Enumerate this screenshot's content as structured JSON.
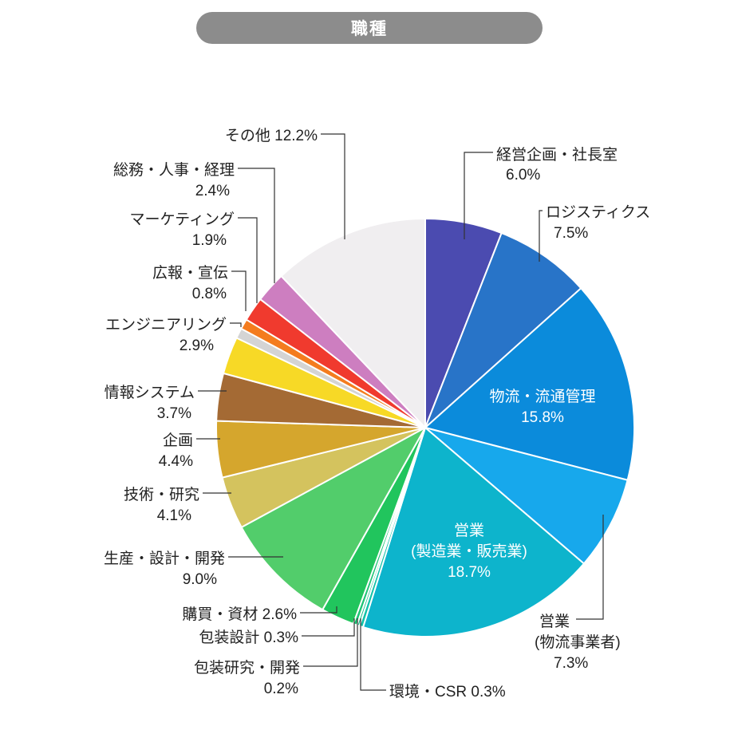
{
  "title": "職種",
  "chart_data": {
    "type": "pie",
    "title": "職種",
    "start": "12 o'clock",
    "direction": "clockwise",
    "slices": [
      {
        "label": "経営企画・社長室",
        "value": 6.0,
        "value_text": "6.0%",
        "color": "#4b4bb0"
      },
      {
        "label": "ロジスティクス",
        "value": 7.5,
        "value_text": "7.5%",
        "color": "#2874c8"
      },
      {
        "label": "物流・流通管理",
        "value": 15.8,
        "value_text": "15.8%",
        "color": "#0b8bdb"
      },
      {
        "label": "営業(物流事業者)",
        "value": 7.3,
        "value_text": "7.3%",
        "color": "#17a8ec"
      },
      {
        "label": "営業(製造業・販売業)",
        "value": 18.7,
        "value_text": "18.7%",
        "color": "#0db4cc"
      },
      {
        "label": "環境・CSR",
        "value": 0.3,
        "value_text": "0.3%",
        "color": "#13c2a8"
      },
      {
        "label": "包装研究・開発",
        "value": 0.2,
        "value_text": "0.2%",
        "color": "#1ec48f"
      },
      {
        "label": "包装設計",
        "value": 0.3,
        "value_text": "0.3%",
        "color": "#1fc476"
      },
      {
        "label": "購買・資材",
        "value": 2.6,
        "value_text": "2.6%",
        "color": "#21c55d"
      },
      {
        "label": "生産・設計・開発",
        "value": 9.0,
        "value_text": "9.0%",
        "color": "#52cd6b"
      },
      {
        "label": "技術・研究",
        "value": 4.1,
        "value_text": "4.1%",
        "color": "#d4c35e"
      },
      {
        "label": "企画",
        "value": 4.4,
        "value_text": "4.4%",
        "color": "#d5a62d"
      },
      {
        "label": "情報システム",
        "value": 3.7,
        "value_text": "3.7%",
        "color": "#a46a34"
      },
      {
        "label": "エンジニアリング",
        "value": 2.9,
        "value_text": "2.9%",
        "color": "#f7d926"
      },
      {
        "label": "",
        "value": 0.8,
        "value_text": "",
        "color": "#d4d4d4"
      },
      {
        "label": "広報・宣伝",
        "value": 0.8,
        "value_text": "0.8%",
        "color": "#f47c1f"
      },
      {
        "label": "マーケティング",
        "value": 1.9,
        "value_text": "1.9%",
        "color": "#f03a2e"
      },
      {
        "label": "総務・人事・経理",
        "value": 2.4,
        "value_text": "2.4%",
        "color": "#cd7ec0"
      },
      {
        "label": "その他",
        "value": 12.2,
        "value_text": "12.2%",
        "color": "#f0eef0"
      }
    ],
    "labels": {
      "keiei": {
        "line1": "経営企画・社長室",
        "line2": "6.0%"
      },
      "logi": {
        "line1": "ロジスティクス",
        "line2": "7.5%"
      },
      "butsuryu": {
        "line1": "物流・流通管理",
        "line2": "15.8%"
      },
      "eigyo_b": {
        "line1": "営業",
        "line2": "(物流事業者)",
        "line3": "7.3%"
      },
      "eigyo_s": {
        "line1": "営業",
        "line2": "(製造業・販売業)",
        "line3": "18.7%"
      },
      "kankyo": {
        "line1": "環境・CSR 0.3%"
      },
      "hoso_kenkyu": {
        "line1": "包装研究・開発",
        "line2": "0.2%"
      },
      "hoso_sekkei": {
        "line1": "包装設計 0.3%"
      },
      "kobai": {
        "line1": "購買・資材 2.6%"
      },
      "seisan": {
        "line1": "生産・設計・開発",
        "line2": "9.0%"
      },
      "gijutsu": {
        "line1": "技術・研究",
        "line2": "4.1%"
      },
      "kikaku": {
        "line1": "企画",
        "line2": "4.4%"
      },
      "joho": {
        "line1": "情報システム",
        "line2": "3.7%"
      },
      "eng": {
        "line1": "エンジニアリング",
        "line2": "2.9%"
      },
      "koho": {
        "line1": "広報・宣伝",
        "line2": "0.8%"
      },
      "mkt": {
        "line1": "マーケティング",
        "line2": "1.9%"
      },
      "somu": {
        "line1": "総務・人事・経理",
        "line2": "2.4%"
      },
      "sonota": {
        "line1": "その他 12.2%"
      }
    }
  }
}
